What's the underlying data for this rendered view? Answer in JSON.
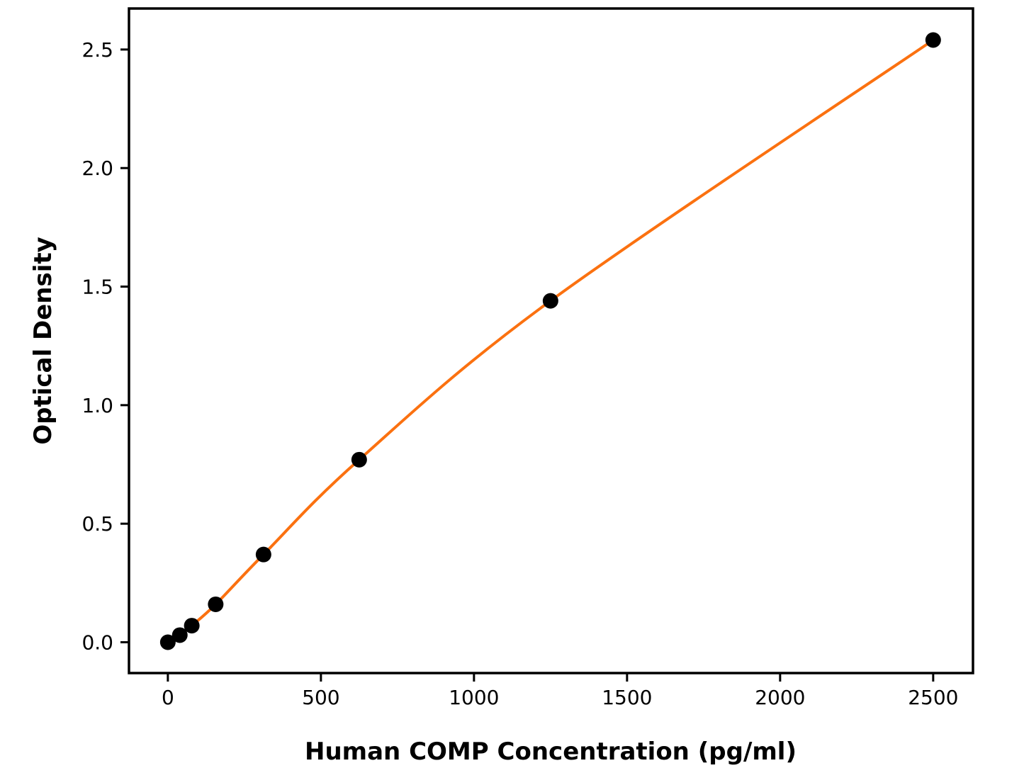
{
  "chart_data": {
    "type": "scatter",
    "title": "",
    "xlabel": "Human COMP Concentration (pg/ml)",
    "ylabel": "Optical Density",
    "points": [
      {
        "x": 0,
        "y": 0.0
      },
      {
        "x": 39.06,
        "y": 0.03
      },
      {
        "x": 78.125,
        "y": 0.07
      },
      {
        "x": 156.25,
        "y": 0.16
      },
      {
        "x": 312.5,
        "y": 0.37
      },
      {
        "x": 625,
        "y": 0.77
      },
      {
        "x": 1250,
        "y": 1.44
      },
      {
        "x": 2500,
        "y": 2.54
      }
    ],
    "fit_line": "smooth curve through all points",
    "xticks": {
      "values": [
        0,
        500,
        1000,
        1500,
        2000,
        2500
      ],
      "labels": [
        "0",
        "500",
        "1000",
        "1500",
        "2000",
        "2500"
      ]
    },
    "yticks": {
      "values": [
        0.0,
        0.5,
        1.0,
        1.5,
        2.0,
        2.5
      ],
      "labels": [
        "0.0",
        "0.5",
        "1.0",
        "1.5",
        "2.0",
        "2.5"
      ]
    },
    "xlim": [
      -127,
      2630
    ],
    "ylim": [
      -0.13,
      2.673
    ],
    "grid": false,
    "legend": null,
    "colors": {
      "line": "#fb7110",
      "marker": "#000000",
      "axis": "#000000",
      "background": "#ffffff"
    },
    "marker_radius": 11,
    "line_width": 4
  }
}
